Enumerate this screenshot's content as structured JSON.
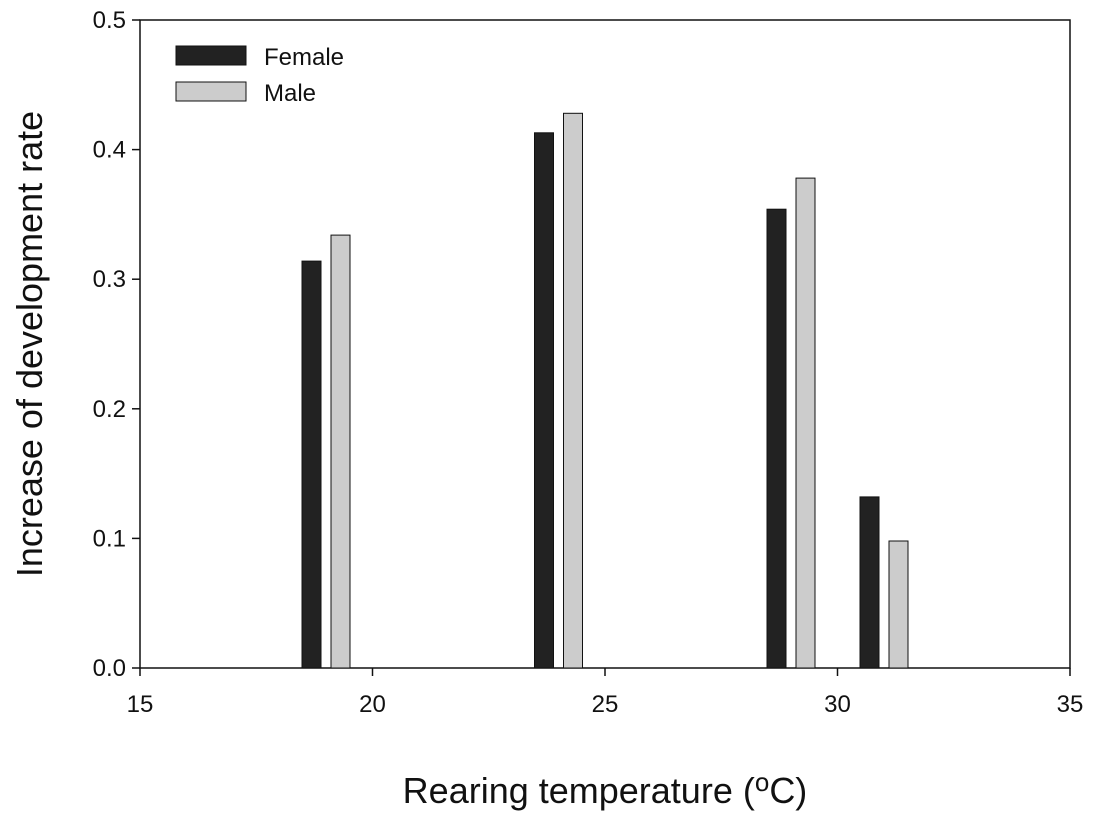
{
  "chart_data": {
    "type": "bar",
    "title": "",
    "xlabel": "Rearing temperature",
    "xlabel_unit_prefix": " (",
    "xlabel_unit_sup": "o",
    "xlabel_unit_suffix": "C)",
    "ylabel": "Increase of development rate",
    "xlim": [
      15,
      35
    ],
    "ylim": [
      0,
      0.5
    ],
    "xticks": [
      15,
      20,
      25,
      30,
      35
    ],
    "xtick_labels": [
      "15",
      "20",
      "25",
      "30",
      "35"
    ],
    "yticks": [
      0.0,
      0.1,
      0.2,
      0.3,
      0.4,
      0.5
    ],
    "ytick_labels": [
      "0.0",
      "0.1",
      "0.2",
      "0.3",
      "0.4",
      "0.5"
    ],
    "grid": false,
    "legend_position": "top-left",
    "x": [
      19,
      24,
      29,
      31
    ],
    "series": [
      {
        "name": "Female",
        "color": "#222222",
        "values": [
          0.314,
          0.413,
          0.354,
          0.132
        ]
      },
      {
        "name": "Male",
        "color": "#cccccc",
        "values": [
          0.334,
          0.428,
          0.378,
          0.098
        ]
      }
    ]
  }
}
